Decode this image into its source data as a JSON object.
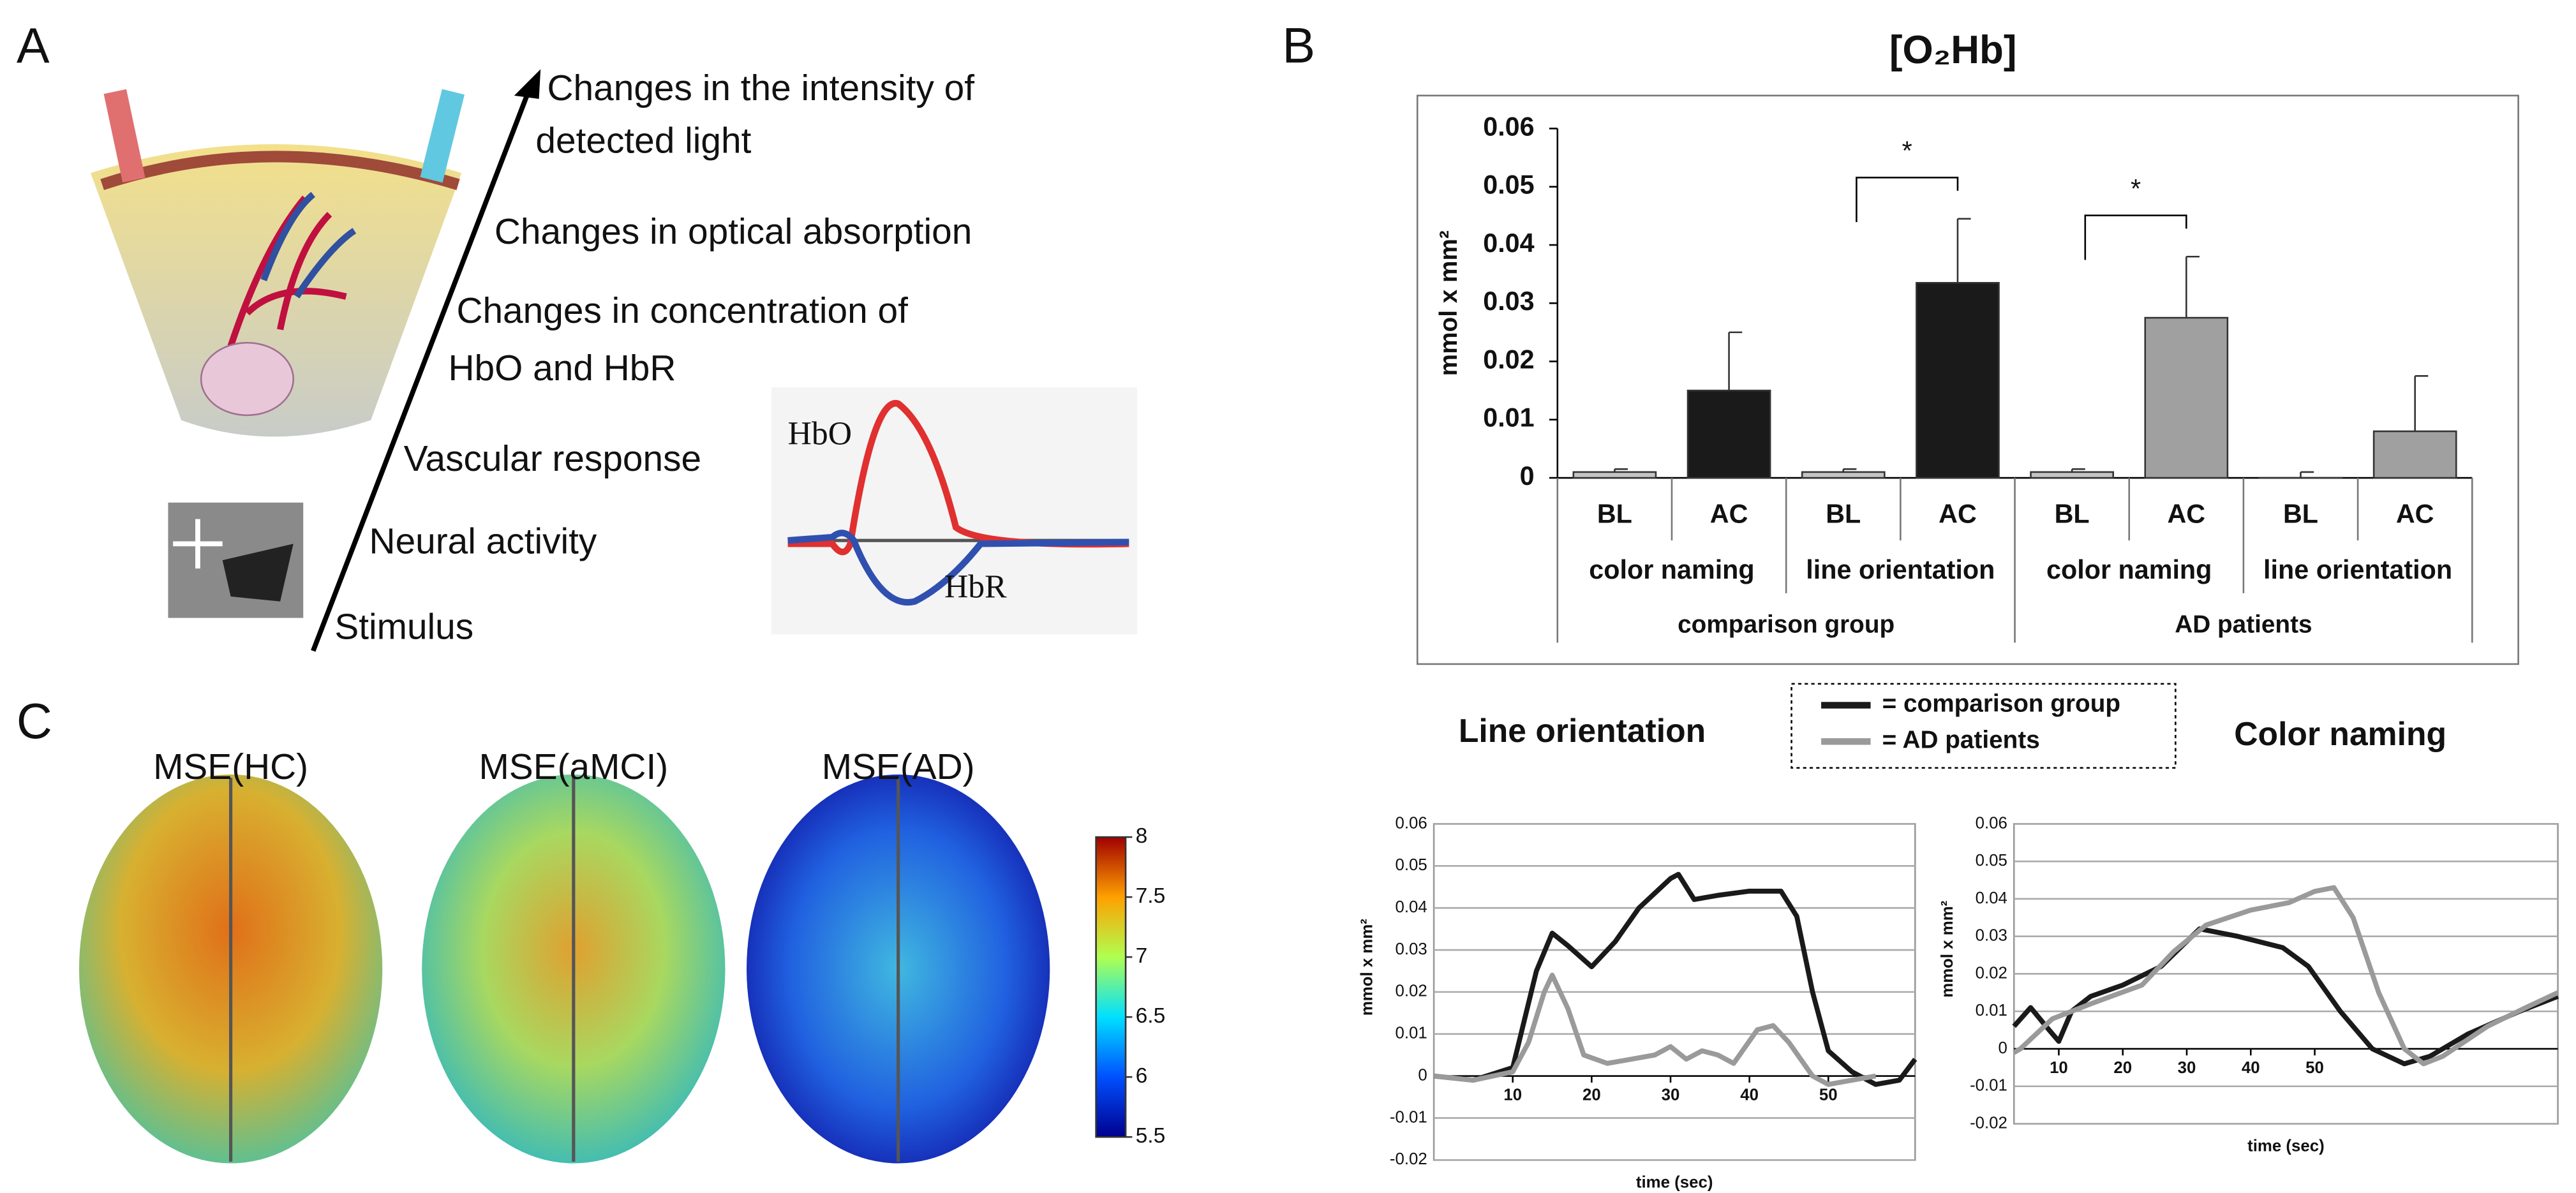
{
  "panels": {
    "a": "A",
    "b": "B",
    "c": "C"
  },
  "diagram": {
    "steps": [
      [
        "Changes in the intensity of",
        "detected light"
      ],
      [
        "Changes in optical absorption"
      ],
      [
        "Changes in concentration of",
        "HbO and HbR"
      ],
      [
        "Vascular response"
      ],
      [
        "Neural activity"
      ],
      [
        "Stimulus"
      ]
    ],
    "hbo": "HbO",
    "hbr": "HbR"
  },
  "chart_data": [
    {
      "type": "bar",
      "title": "[O₂Hb]",
      "y_label": "mmol x mm²",
      "categories": [
        "BL",
        "AC",
        "BL",
        "AC",
        "BL",
        "AC",
        "BL",
        "AC"
      ],
      "groups": [
        "color naming",
        "line orientation",
        "color naming",
        "line orientation"
      ],
      "supergroups": [
        "comparison group",
        "AD patients"
      ],
      "values": [
        0.001,
        0.015,
        0.001,
        0.0335,
        0.001,
        0.0275,
        0.0,
        0.008
      ],
      "errors": [
        0.0005,
        0.01,
        0.0005,
        0.011,
        0.0005,
        0.0105,
        0.001,
        0.0095
      ],
      "colors": [
        "#c4c4c4",
        "#1a1a1a",
        "#c4c4c4",
        "#1a1a1a",
        "#c4c4c4",
        "#a0a0a0",
        "#c4c4c4",
        "#a0a0a0"
      ],
      "annotations": [
        {
          "text": "*",
          "between": [
            2,
            3
          ]
        },
        {
          "text": "*",
          "between": [
            4,
            5
          ]
        }
      ],
      "ylim": [
        0,
        0.06
      ],
      "yticks": [
        0,
        0.01,
        0.02,
        0.03,
        0.04,
        0.05,
        0.06
      ]
    },
    {
      "type": "line",
      "title": "Line orientation",
      "x_label": "time (sec)",
      "y_label": "mmol x mm²",
      "xlim": [
        0,
        61
      ],
      "xticks": [
        10,
        20,
        30,
        40,
        50
      ],
      "ylim": [
        -0.02,
        0.06
      ],
      "yticks": [
        -0.02,
        -0.01,
        0,
        0.01,
        0.02,
        0.03,
        0.04,
        0.05,
        0.06
      ],
      "grid": true,
      "series": [
        {
          "name": "= comparison group",
          "color": "#1a1a1a",
          "x": [
            0,
            5,
            10,
            13,
            15,
            17,
            20,
            23,
            26,
            30,
            31,
            33,
            36,
            40,
            44,
            46,
            48,
            50,
            53,
            56,
            59,
            61
          ],
          "values": [
            0,
            -0.001,
            0.002,
            0.025,
            0.034,
            0.031,
            0.026,
            0.032,
            0.04,
            0.047,
            0.048,
            0.042,
            0.043,
            0.044,
            0.044,
            0.038,
            0.02,
            0.006,
            0.001,
            -0.002,
            -0.001,
            0.004
          ]
        },
        {
          "name": "= AD patients",
          "color": "#9a9a9a",
          "x": [
            0,
            5,
            10,
            12,
            14,
            15,
            17,
            19,
            22,
            25,
            28,
            30,
            32,
            34,
            36,
            38,
            41,
            43,
            45,
            48,
            50,
            53,
            56
          ],
          "values": [
            0,
            -0.001,
            0.001,
            0.008,
            0.02,
            0.024,
            0.016,
            0.005,
            0.003,
            0.004,
            0.005,
            0.007,
            0.004,
            0.006,
            0.005,
            0.003,
            0.011,
            0.012,
            0.008,
            0,
            -0.002,
            -0.001,
            0
          ]
        }
      ]
    },
    {
      "type": "line",
      "title": "Color naming",
      "x_label": "time (sec)",
      "y_label": "mmol x mm²",
      "xlim": [
        3,
        88
      ],
      "xticks": [
        10,
        20,
        30,
        40,
        50
      ],
      "ylim": [
        -0.02,
        0.06
      ],
      "yticks": [
        -0.02,
        -0.01,
        0,
        0.01,
        0.02,
        0.03,
        0.04,
        0.05,
        0.06
      ],
      "grid": true,
      "series": [
        {
          "name": "= comparison group",
          "color": "#1a1a1a",
          "x": [
            3,
            5.6,
            8.5,
            10,
            12,
            15,
            20,
            26,
            32,
            38,
            45,
            49,
            54,
            59,
            64,
            68,
            74,
            82,
            88
          ],
          "values": [
            0.006,
            0.011,
            0.005,
            0.002,
            0.01,
            0.014,
            0.017,
            0.022,
            0.032,
            0.03,
            0.027,
            0.022,
            0.01,
            0,
            -0.004,
            -0.002,
            0.004,
            0.01,
            0.014
          ]
        },
        {
          "name": "= AD patients",
          "color": "#9a9a9a",
          "x": [
            3,
            4,
            9,
            15,
            23,
            28,
            33,
            40,
            46,
            50,
            53,
            56,
            60,
            64,
            67,
            70,
            77,
            83,
            88
          ],
          "values": [
            -0.001,
            0,
            0.008,
            0.012,
            0.017,
            0.026,
            0.033,
            0.037,
            0.039,
            0.042,
            0.043,
            0.035,
            0.015,
            0,
            -0.004,
            -0.002,
            0.006,
            0.011,
            0.015
          ]
        }
      ]
    },
    {
      "type": "colorbar",
      "labels": [
        "MSE(HC)",
        "MSE(aMCI)",
        "MSE(AD)"
      ],
      "ylim": [
        5.5,
        8
      ],
      "yticks": [
        8,
        7.5,
        7,
        6.5,
        6,
        5.5
      ]
    }
  ]
}
